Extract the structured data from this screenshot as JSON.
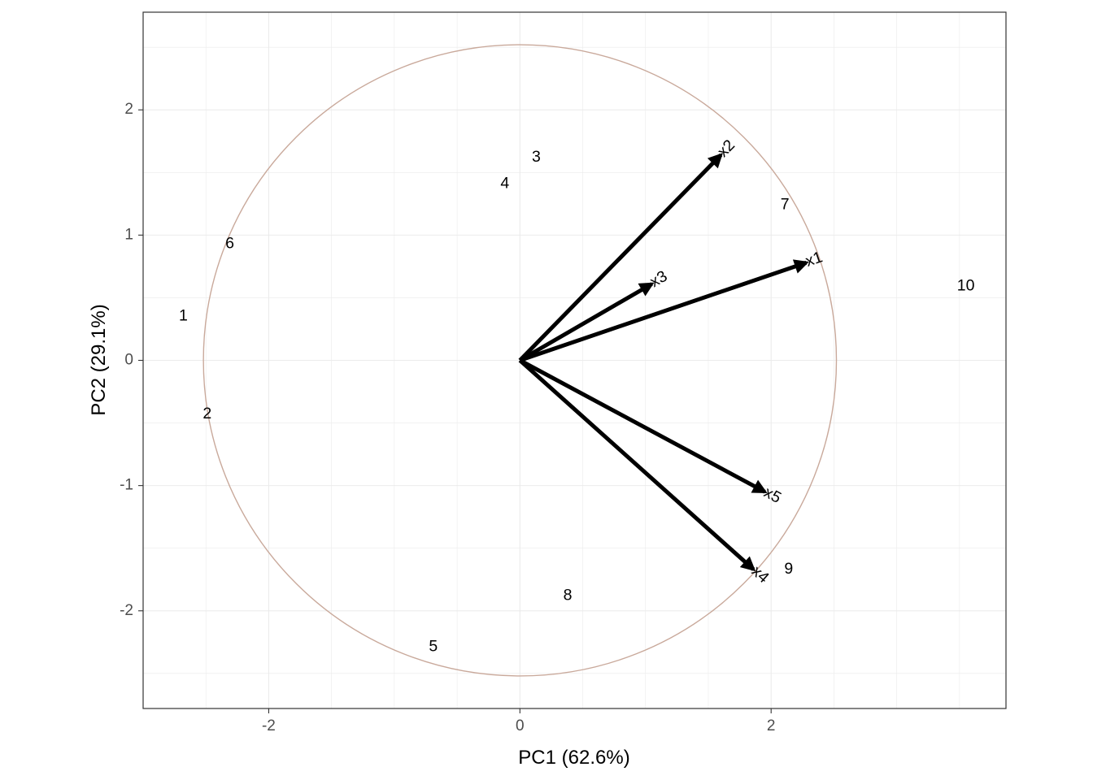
{
  "chart_data": {
    "type": "scatter",
    "subtype": "pca-biplot",
    "xlabel": "PC1 (62.6%)",
    "ylabel": "PC2 (29.1%)",
    "xlim": [
      -3.0,
      3.87
    ],
    "ylim": [
      -2.78,
      2.78
    ],
    "x_ticks": [
      -2,
      0,
      2
    ],
    "x_tick_labels": [
      "-2",
      "0",
      "2"
    ],
    "y_ticks": [
      -2,
      -1,
      0,
      1,
      2
    ],
    "y_tick_labels": [
      "-2",
      "-1",
      "0",
      "1",
      "2"
    ],
    "grid": true,
    "minor_grid": true,
    "points": [
      {
        "label": "1",
        "x": -2.68,
        "y": 0.35
      },
      {
        "label": "2",
        "x": -2.49,
        "y": -0.43
      },
      {
        "label": "3",
        "x": 0.13,
        "y": 1.62
      },
      {
        "label": "4",
        "x": -0.12,
        "y": 1.41
      },
      {
        "label": "5",
        "x": -0.69,
        "y": -2.29
      },
      {
        "label": "6",
        "x": -2.31,
        "y": 0.93
      },
      {
        "label": "7",
        "x": 2.11,
        "y": 1.24
      },
      {
        "label": "8",
        "x": 0.38,
        "y": -1.88
      },
      {
        "label": "9",
        "x": 2.14,
        "y": -1.67
      },
      {
        "label": "10",
        "x": 3.55,
        "y": 0.59
      }
    ],
    "loadings": [
      {
        "label": "x1",
        "x": 2.28,
        "y": 0.78
      },
      {
        "label": "x2",
        "x": 1.6,
        "y": 1.64
      },
      {
        "label": "x3",
        "x": 1.05,
        "y": 0.61
      },
      {
        "label": "x4",
        "x": 1.86,
        "y": -1.67
      },
      {
        "label": "x5",
        "x": 1.95,
        "y": -1.05
      }
    ],
    "circle": {
      "radius": 2.52,
      "color": "#c9a99b"
    },
    "colors": {
      "arrow": "#000000",
      "grid": "#ebebeb",
      "border": "#333333",
      "points": "#000000"
    }
  }
}
